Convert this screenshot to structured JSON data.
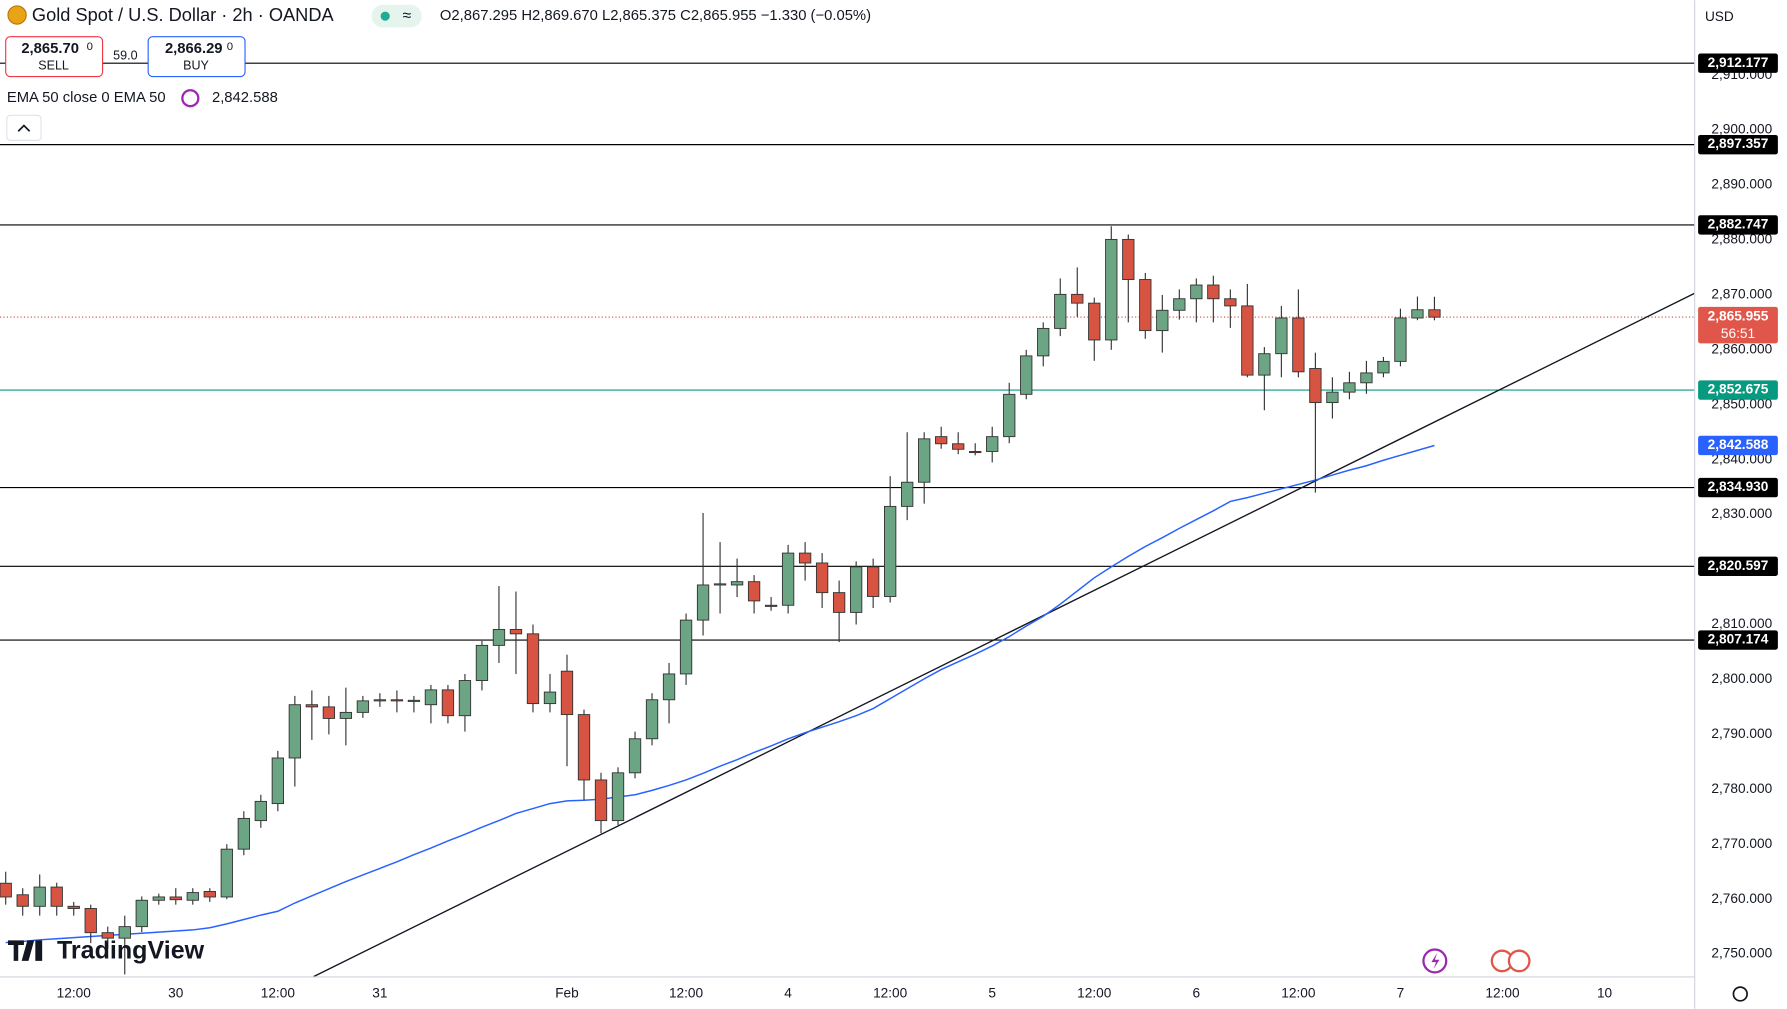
{
  "header": {
    "symbol": "Gold Spot / U.S. Dollar · 2h · OANDA",
    "ohlc_text": "O2,867.295 H2,869.670 L2,865.375 C2,865.955 −1.330 (−0.05%)",
    "sell": {
      "price": "2,865.70",
      "pip": "0",
      "label": "SELL"
    },
    "spread": "59.0",
    "buy": {
      "price": "2,866.29",
      "pip": "0",
      "label": "BUY"
    },
    "indicator": "EMA 50 close 0 EMA 50",
    "currency": "USD",
    "brand": "TradingView"
  },
  "chart_data": {
    "type": "candlestick",
    "up_color": "#6ba583",
    "down_color": "#d75442",
    "xlim": [
      -0.335,
      99.3
    ],
    "ylim": [
      2745.85,
      2923.65
    ],
    "xticks": [
      {
        "value": 4,
        "label": "12:00"
      },
      {
        "value": 10,
        "label": "30"
      },
      {
        "value": 16,
        "label": "12:00"
      },
      {
        "value": 22,
        "label": "31"
      },
      {
        "value": 33,
        "label": "Feb"
      },
      {
        "value": 40,
        "label": "12:00"
      },
      {
        "value": 46,
        "label": "4"
      },
      {
        "value": 52,
        "label": "12:00"
      },
      {
        "value": 58,
        "label": "5"
      },
      {
        "value": 64,
        "label": "12:00"
      },
      {
        "value": 70,
        "label": "6"
      },
      {
        "value": 76,
        "label": "12:00"
      },
      {
        "value": 82,
        "label": "7"
      },
      {
        "value": 88,
        "label": "12:00"
      },
      {
        "value": 94,
        "label": "10"
      }
    ],
    "yticks": [
      {
        "value": 2750,
        "label": "2,750.000"
      },
      {
        "value": 2760,
        "label": "2,760.000"
      },
      {
        "value": 2770,
        "label": "2,770.000"
      },
      {
        "value": 2780,
        "label": "2,780.000"
      },
      {
        "value": 2790,
        "label": "2,790.000"
      },
      {
        "value": 2800,
        "label": "2,800.000"
      },
      {
        "value": 2810,
        "label": "2,810.000"
      },
      {
        "value": 2820,
        "label": "2,820.000"
      },
      {
        "value": 2830,
        "label": "2,830.000"
      },
      {
        "value": 2840,
        "label": "2,840.000"
      },
      {
        "value": 2850,
        "label": "2,850.000"
      },
      {
        "value": 2860,
        "label": "2,860.000"
      },
      {
        "value": 2870,
        "label": "2,870.000"
      },
      {
        "value": 2880,
        "label": "2,880.000"
      },
      {
        "value": 2890,
        "label": "2,890.000"
      },
      {
        "value": 2900,
        "label": "2,900.000"
      },
      {
        "value": 2910,
        "label": "2,910.000"
      }
    ],
    "open": [
      2762.9,
      2760.8,
      2758.7,
      2762.2,
      2758.7,
      2758.3,
      2753.9,
      2752.9,
      2755.0,
      2759.8,
      2760.4,
      2759.8,
      2761.4,
      2760.4,
      2769.1,
      2774.3,
      2777.4,
      2785.7,
      2795.4,
      2795.0,
      2792.9,
      2794.0,
      2796.1,
      2796.3,
      2796.1,
      2795.4,
      2798.1,
      2793.4,
      2799.8,
      2806.2,
      2809.1,
      2808.3,
      2795.6,
      2801.5,
      2793.6,
      2781.7,
      2774.3,
      2783.0,
      2789.2,
      2796.3,
      2801.0,
      2810.8,
      2817.2,
      2817.2,
      2817.8,
      2813.5,
      2813.5,
      2823.0,
      2821.2,
      2815.8,
      2812.2,
      2820.5,
      2815.1,
      2831.5,
      2835.9,
      2844.2,
      2842.9,
      2841.5,
      2841.5,
      2844.2,
      2851.9,
      2858.9,
      2863.9,
      2870.1,
      2868.5,
      2861.8,
      2880.1,
      2872.8,
      2863.5,
      2867.2,
      2869.3,
      2871.8,
      2869.3,
      2868.0,
      2855.4,
      2859.3,
      2865.8,
      2856.6,
      2850.4,
      2852.3,
      2854.0,
      2855.8,
      2857.9,
      2865.8,
      2867.295
    ],
    "high": [
      2765,
      2762,
      2764.5,
      2763,
      2759.5,
      2759,
      2755,
      2757,
      2760.5,
      2761,
      2762,
      2762,
      2762,
      2770,
      2776,
      2779,
      2787,
      2797,
      2798,
      2797,
      2798.5,
      2797,
      2797.5,
      2798,
      2797,
      2799,
      2799,
      2801,
      2807,
      2817,
      2816,
      2810,
      2801,
      2804.5,
      2794.5,
      2783,
      2784,
      2790.5,
      2797.5,
      2803,
      2812,
      2830.3,
      2825,
      2822,
      2819,
      2815,
      2824.5,
      2825,
      2823,
      2818,
      2821.5,
      2822,
      2837,
      2845,
      2845,
      2846,
      2845,
      2843,
      2846,
      2854,
      2860,
      2865,
      2873,
      2875,
      2869.5,
      2882.5,
      2881,
      2874,
      2870,
      2871,
      2873,
      2873.5,
      2871,
      2872,
      2860.5,
      2868,
      2871,
      2859.5,
      2855,
      2856,
      2858,
      2858.7,
      2867.5,
      2869.7,
      2869.67
    ],
    "low": [
      2759,
      2757,
      2757,
      2757,
      2757,
      2752,
      2751,
      2746.3,
      2754,
      2759,
      2759,
      2759,
      2759.5,
      2760,
      2768,
      2773,
      2776,
      2780.5,
      2789,
      2790,
      2788,
      2793,
      2795,
      2794,
      2794,
      2792,
      2792,
      2790.5,
      2798,
      2803,
      2801,
      2794,
      2794,
      2784.2,
      2778,
      2772,
      2773.5,
      2782,
      2788,
      2792,
      2799,
      2808,
      2812,
      2815,
      2812,
      2812.5,
      2812,
      2818,
      2813,
      2806.8,
      2810,
      2813,
      2814,
      2829,
      2832,
      2842,
      2841,
      2840.8,
      2839.5,
      2843,
      2851,
      2857,
      2862.5,
      2866,
      2858,
      2860,
      2865,
      2862,
      2859.5,
      2865.5,
      2865,
      2865,
      2864,
      2855,
      2849,
      2855,
      2855,
      2834,
      2847.5,
      2851,
      2852,
      2855,
      2857,
      2865.4,
      2865.375
    ],
    "close": [
      2760.4,
      2758.7,
      2762.2,
      2758.7,
      2758.3,
      2753.9,
      2752.9,
      2755.0,
      2759.8,
      2760.4,
      2759.9,
      2761.2,
      2760.4,
      2769.1,
      2774.7,
      2777.8,
      2785.7,
      2795.4,
      2795.0,
      2792.9,
      2794.0,
      2796.1,
      2796.3,
      2796.1,
      2796.2,
      2798.1,
      2793.4,
      2799.8,
      2806.2,
      2809.1,
      2808.3,
      2795.6,
      2797.7,
      2793.6,
      2781.7,
      2774.3,
      2783.0,
      2789.2,
      2796.3,
      2801.0,
      2810.8,
      2817.2,
      2817.4,
      2817.8,
      2814.3,
      2813.3,
      2823.0,
      2821.2,
      2815.8,
      2812.2,
      2820.5,
      2815.1,
      2831.5,
      2835.9,
      2843.8,
      2842.9,
      2841.9,
      2841.4,
      2844.2,
      2851.9,
      2858.9,
      2863.9,
      2870.1,
      2868.5,
      2861.8,
      2880.1,
      2872.8,
      2863.5,
      2867.2,
      2869.3,
      2871.8,
      2869.3,
      2868.0,
      2855.4,
      2859.3,
      2865.8,
      2856.0,
      2850.4,
      2852.3,
      2854.0,
      2855.8,
      2857.9,
      2865.8,
      2867.3,
      2865.955
    ],
    "ema": {
      "color": "#2962ff",
      "tag_label": "2,842.588",
      "values": [
        2752.1,
        2752.3,
        2752.6,
        2752.8,
        2753.0,
        2753.2,
        2753.4,
        2753.6,
        2753.8,
        2754.0,
        2754.2,
        2754.4,
        2754.8,
        2755.5,
        2756.3,
        2757.1,
        2757.8,
        2759.3,
        2760.6,
        2761.9,
        2763.2,
        2764.4,
        2765.6,
        2766.8,
        2768.1,
        2769.3,
        2770.6,
        2771.8,
        2773.1,
        2774.3,
        2775.6,
        2776.5,
        2777.4,
        2777.9,
        2778.0,
        2778.2,
        2778.6,
        2779.0,
        2779.8,
        2780.7,
        2781.7,
        2782.9,
        2784.2,
        2785.4,
        2786.7,
        2787.9,
        2789.2,
        2790.3,
        2791.3,
        2792.3,
        2793.4,
        2794.7,
        2796.5,
        2798.3,
        2800.1,
        2801.8,
        2803.2,
        2804.6,
        2806.1,
        2807.8,
        2809.7,
        2811.5,
        2813.7,
        2816.1,
        2818.5,
        2820.5,
        2822.4,
        2824.2,
        2825.8,
        2827.5,
        2829.1,
        2830.7,
        2832.4,
        2833.1,
        2833.9,
        2834.7,
        2835.5,
        2836.3,
        2837.2,
        2838.1,
        2838.9,
        2839.9,
        2840.8,
        2841.7,
        2842.588
      ]
    },
    "trendline": {
      "color": "#131722",
      "x": [
        18.1,
        99.3
      ],
      "y": [
        2745.9,
        2870.3
      ]
    },
    "levels": [
      {
        "value": 2912.177,
        "label": "2,912.177",
        "color": "#000000"
      },
      {
        "value": 2897.357,
        "label": "2,897.357",
        "color": "#000000"
      },
      {
        "value": 2882.747,
        "label": "2,882.747",
        "color": "#000000"
      },
      {
        "value": 2852.675,
        "label": "2,852.675",
        "color": "#089981"
      },
      {
        "value": 2834.93,
        "label": "2,834.930",
        "color": "#000000"
      },
      {
        "value": 2820.597,
        "label": "2,820.597",
        "color": "#000000"
      },
      {
        "value": 2807.174,
        "label": "2,807.174",
        "color": "#000000"
      }
    ],
    "price_tag": {
      "value": 2865.955,
      "label": "2,865.955",
      "countdown": "56:51",
      "color": "#e0564a"
    }
  }
}
